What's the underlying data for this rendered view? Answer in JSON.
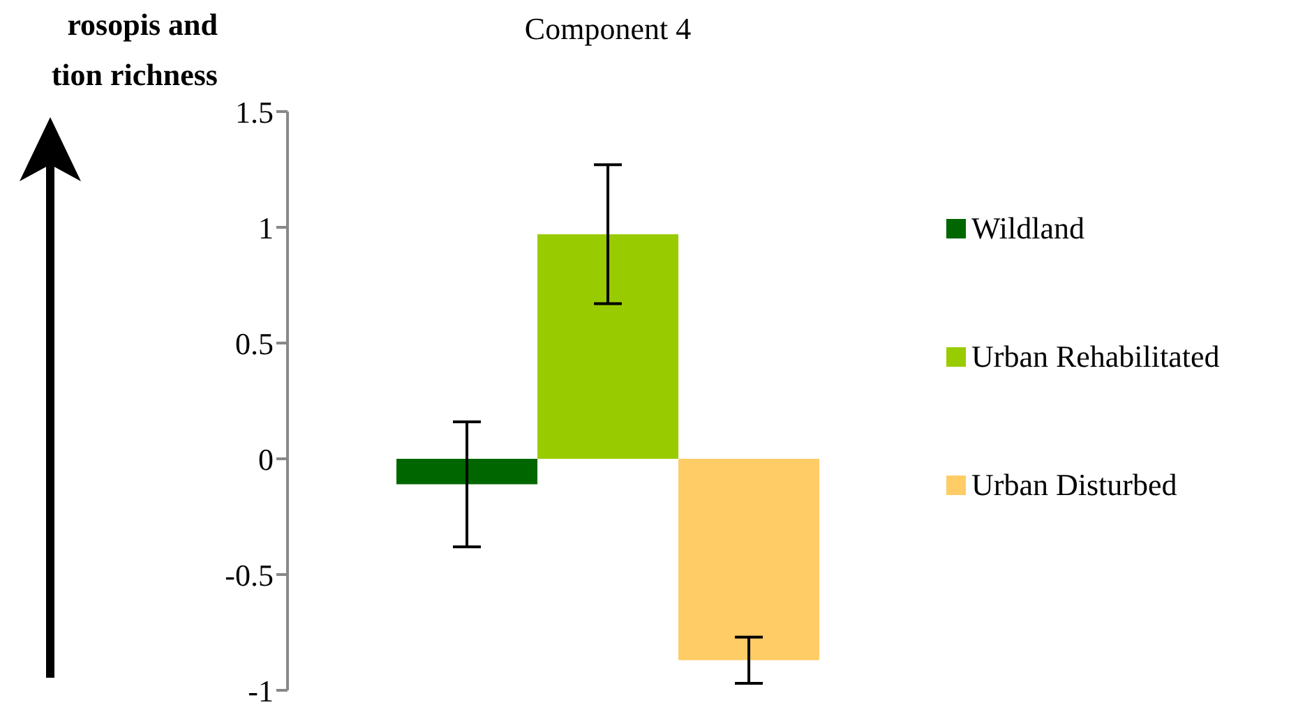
{
  "chart_data": {
    "type": "bar",
    "title": "Component 4",
    "annotations": [
      "rosopis and",
      "tion richness"
    ],
    "categories": [
      null
    ],
    "series": [
      {
        "name": "Wildland",
        "color": "#006600",
        "values": [
          -0.11
        ],
        "errors": [
          0.27
        ]
      },
      {
        "name": "Urban Rehabilitated",
        "color": "#99cc00",
        "values": [
          0.97
        ],
        "errors": [
          0.3
        ]
      },
      {
        "name": "Urban Disturbed",
        "color": "#ffcc66",
        "values": [
          -0.87
        ],
        "errors": [
          0.1
        ]
      }
    ],
    "ylim": [
      -1,
      1.5
    ],
    "yticks": [
      -1,
      -0.5,
      0,
      0.5,
      1,
      1.5
    ],
    "grid": false,
    "legend": "right"
  }
}
